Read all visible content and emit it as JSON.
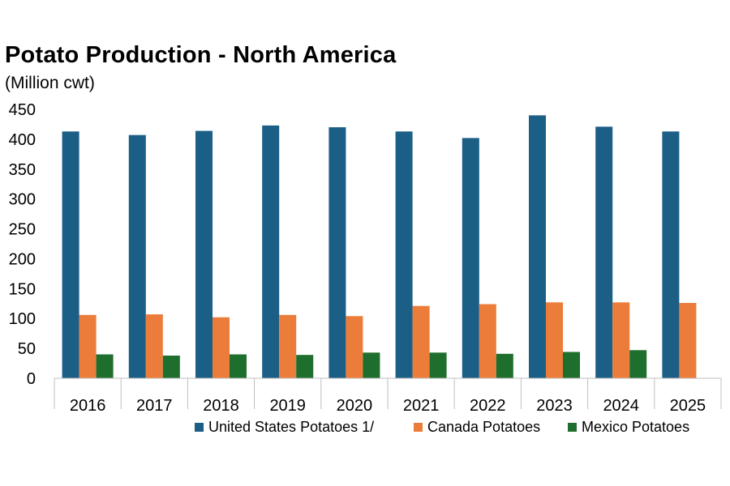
{
  "chart_data": {
    "type": "bar",
    "title": "Potato Production - North America",
    "subtitle": "(Million cwt)",
    "categories": [
      "2016",
      "2017",
      "2018",
      "2019",
      "2020",
      "2021",
      "2022",
      "2023",
      "2024",
      "2025"
    ],
    "series": [
      {
        "name": "United States Potatoes 1/",
        "color": "#1b5e86",
        "values": [
          413,
          407,
          414,
          423,
          420,
          413,
          402,
          440,
          421,
          413
        ]
      },
      {
        "name": "Canada Potatoes",
        "color": "#ec7c3a",
        "values": [
          106,
          107,
          102,
          106,
          104,
          121,
          124,
          127,
          127,
          126
        ]
      },
      {
        "name": "Mexico Potatoes",
        "color": "#1e6e2d",
        "values": [
          40,
          38,
          40,
          39,
          43,
          43,
          41,
          44,
          47,
          null
        ]
      }
    ],
    "ylim": [
      0,
      450
    ],
    "yticks": [
      "0",
      "50",
      "100",
      "150",
      "200",
      "250",
      "300",
      "350",
      "400",
      "450"
    ],
    "xlabel": "",
    "ylabel": "",
    "grid": false,
    "legend_position": "bottom"
  }
}
